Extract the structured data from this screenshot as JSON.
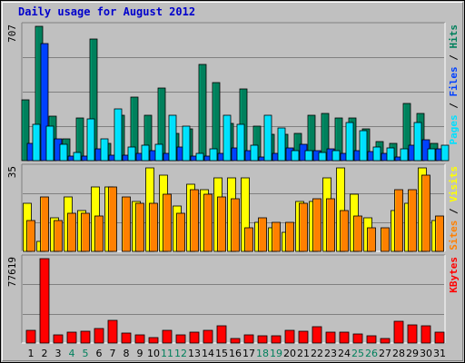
{
  "title": "Daily usage for August 2012",
  "colors": {
    "hits": "#00805c",
    "files": "#0040ff",
    "pages": "#00e0ff",
    "visits": "#ffff00",
    "sites": "#ff8000",
    "kbytes": "#ff0000",
    "weekend_label": "#00805c",
    "weekday_label": "#000000",
    "plot_bg": "#c0c0c0",
    "gridline": "#808080"
  },
  "chart_data": [
    {
      "type": "bar",
      "panel": "hits-files-pages",
      "ymax_label": "707",
      "ylim": [
        0,
        707
      ],
      "axis_label_parts": [
        {
          "text": "Pages",
          "color": "#00e0ff"
        },
        {
          "text": " / ",
          "color": "#000000"
        },
        {
          "text": "Files",
          "color": "#0040ff"
        },
        {
          "text": " / ",
          "color": "#000000"
        },
        {
          "text": "Hits",
          "color": "#00805c"
        }
      ],
      "series": [
        {
          "name": "Hits",
          "values": [
            322,
            707,
            235,
            115,
            226,
            639,
            93,
            240,
            333,
            240,
            383,
            144,
            169,
            506,
            411,
            197,
            379,
            182,
            139,
            137,
            145,
            240,
            250,
            226,
            226,
            166,
            98,
            93,
            300,
            250,
            89
          ]
        },
        {
          "name": "Files",
          "values": [
            89,
            614,
            115,
            25,
            25,
            62,
            30,
            30,
            37,
            54,
            37,
            70,
            25,
            25,
            37,
            66,
            54,
            20,
            37,
            66,
            87,
            54,
            62,
            37,
            54,
            50,
            37,
            20,
            83,
            108,
            62
          ]
        },
        {
          "name": "Pages",
          "values": [
            190,
            182,
            87,
            41,
            222,
            115,
            274,
            74,
            79,
            87,
            240,
            182,
            37,
            62,
            240,
            190,
            79,
            240,
            170,
            54,
            54,
            41,
            54,
            201,
            157,
            74,
            66,
            62,
            201,
            62,
            79
          ]
        }
      ]
    },
    {
      "type": "bar",
      "panel": "visits-sites",
      "ymax_label": "35",
      "ylim": [
        0,
        35
      ],
      "axis_label_parts": [
        {
          "text": "Sites",
          "color": "#ff8000"
        },
        {
          "text": " / ",
          "color": "#000000"
        },
        {
          "text": "Visits",
          "color": "#ffff00"
        }
      ],
      "series": [
        {
          "name": "Visits",
          "values": [
            20,
            4,
            14,
            23,
            17,
            27,
            27,
            0,
            21,
            35,
            32,
            19,
            28,
            26,
            31,
            31,
            31,
            12,
            10,
            8,
            21,
            21,
            31,
            35,
            24,
            14,
            0,
            17,
            20,
            35,
            13
          ]
        },
        {
          "name": "Sites",
          "values": [
            13,
            23,
            13,
            16,
            16,
            15,
            27,
            23,
            20,
            20,
            24,
            16,
            26,
            24,
            23,
            22,
            10,
            14,
            12,
            12,
            20,
            22,
            22,
            17,
            15,
            10,
            10,
            26,
            26,
            32,
            15
          ]
        }
      ]
    },
    {
      "type": "bar",
      "panel": "kbytes",
      "ymax_label": "77619",
      "ylim": [
        0,
        77619
      ],
      "axis_label_parts": [
        {
          "text": "KBytes",
          "color": "#ff0000"
        }
      ],
      "series": [
        {
          "name": "KBytes",
          "values": [
            12000,
            77619,
            7800,
            9600,
            10800,
            13200,
            21000,
            9000,
            7800,
            4800,
            11400,
            7800,
            10200,
            11400,
            15600,
            4200,
            7800,
            6600,
            6600,
            11400,
            10800,
            15000,
            9600,
            10200,
            8400,
            6600,
            4200,
            20400,
            16800,
            15600,
            10200
          ]
        }
      ]
    }
  ],
  "x_axis": {
    "days": [
      "1",
      "2",
      "3",
      "4",
      "5",
      "6",
      "7",
      "8",
      "9",
      "10",
      "11",
      "12",
      "13",
      "14",
      "15",
      "16",
      "17",
      "18",
      "19",
      "20",
      "21",
      "22",
      "23",
      "24",
      "25",
      "26",
      "27",
      "28",
      "29",
      "30",
      "31"
    ],
    "weekend_indices": [
      3,
      4,
      10,
      11,
      17,
      18,
      24,
      25
    ]
  }
}
